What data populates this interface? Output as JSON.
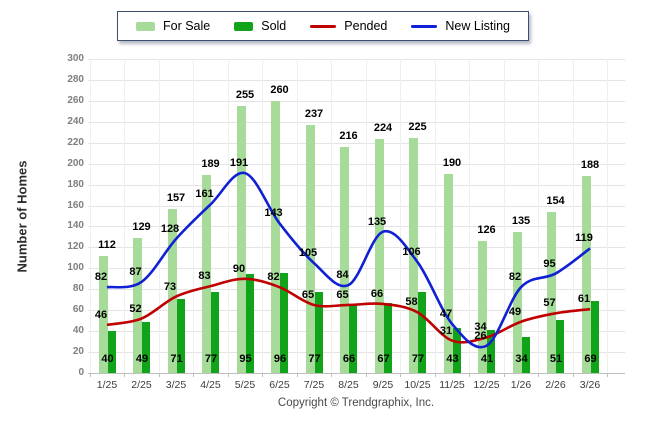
{
  "legend": {
    "items": [
      {
        "label": "For Sale",
        "swatch": "bar",
        "color": "#A7DB9A"
      },
      {
        "label": "Sold",
        "swatch": "bar",
        "color": "#11A41B"
      },
      {
        "label": "Pended",
        "swatch": "line",
        "color": "#C00000"
      },
      {
        "label": "New Listing",
        "swatch": "line",
        "color": "#1021D4"
      }
    ]
  },
  "footer": {
    "copyright": "Copyright © Trendgraphix, Inc."
  },
  "chart_data": {
    "type": "combo",
    "title": "",
    "categories": [
      "1/25",
      "2/25",
      "3/25",
      "4/25",
      "5/25",
      "6/25",
      "7/25",
      "8/25",
      "9/25",
      "10/25",
      "11/25",
      "12/25",
      "1/26",
      "2/26",
      "3/26"
    ],
    "series": [
      {
        "name": "For Sale",
        "type": "bar",
        "color": "#A7DB9A",
        "values": [
          112,
          129,
          157,
          189,
          255,
          260,
          237,
          216,
          224,
          225,
          190,
          126,
          135,
          154,
          188
        ]
      },
      {
        "name": "Sold",
        "type": "bar",
        "color": "#11A41B",
        "values": [
          40,
          49,
          71,
          77,
          95,
          96,
          77,
          66,
          67,
          77,
          43,
          41,
          34,
          51,
          69
        ]
      },
      {
        "name": "Pended",
        "type": "line",
        "color": "#C00000",
        "values": [
          46,
          52,
          73,
          83,
          90,
          82,
          65,
          65,
          66,
          58,
          31,
          34,
          49,
          57,
          61
        ]
      },
      {
        "name": "New Listing",
        "type": "line",
        "color": "#1021D4",
        "values": [
          82,
          87,
          128,
          161,
          191,
          143,
          105,
          84,
          135,
          106,
          47,
          26,
          82,
          95,
          119
        ]
      }
    ],
    "xlabel": "",
    "ylabel": "Number of Homes",
    "ylim": [
      0,
      300
    ],
    "yticks": [
      0,
      20,
      40,
      60,
      80,
      100,
      120,
      140,
      160,
      180,
      200,
      220,
      240,
      260,
      280,
      300
    ],
    "grid": true,
    "legend_position": "top"
  }
}
